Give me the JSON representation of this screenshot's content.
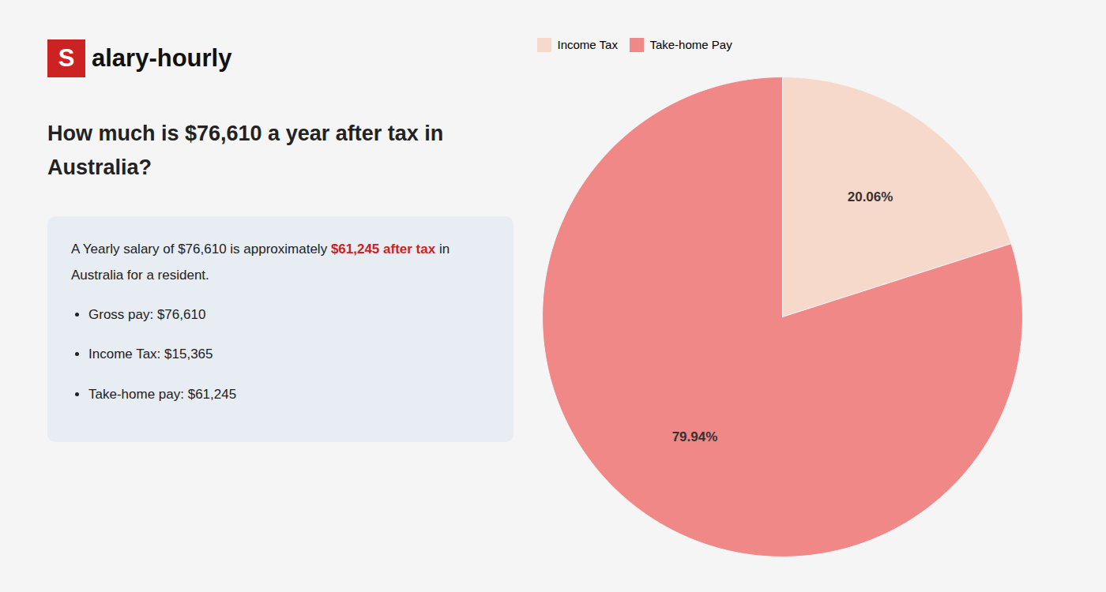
{
  "chart_data": {
    "type": "pie",
    "title": "How much is $76,610 a year after tax in Australia?",
    "annotations": [
      {
        "text": "Salary-hourly",
        "color": "#cc2222"
      },
      {
        "text": "A Yearly salary of $76,610 is approximately "
      },
      {
        "text": "$61,245 after tax",
        "color": "#cc2222"
      },
      {
        "text": " in Australia for a resident."
      },
      {
        "text": "Gross pay: $76,610"
      },
      {
        "text": "Income Tax: $15,365"
      },
      {
        "text": "Take-home pay: $61,245"
      }
    ],
    "categories": [
      "Income Tax",
      "Take-home Pay"
    ],
    "values": [
      20.06,
      79.94
    ],
    "value_labels": [
      "20.06%",
      "79.94%"
    ],
    "colors": [
      "#f7d9cc",
      "#f08888"
    ],
    "data_labels": true,
    "legend": "upper left"
  }
}
